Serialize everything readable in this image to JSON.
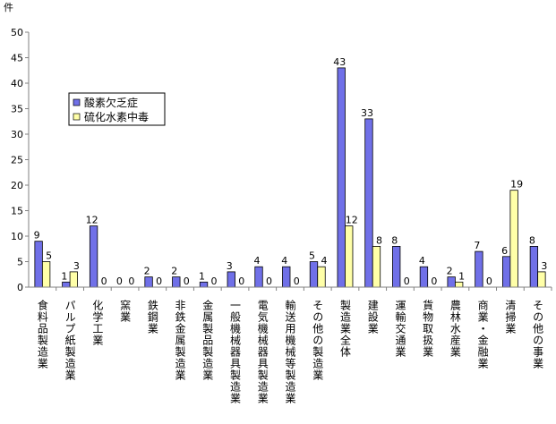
{
  "chart_data": {
    "type": "bar",
    "title": "",
    "xlabel": "",
    "ylabel": "件",
    "ylim": [
      0,
      50
    ],
    "yticks": [
      "0",
      "5",
      "10",
      "15",
      "20",
      "25",
      "30",
      "35",
      "40",
      "45",
      "50"
    ],
    "grid": false,
    "legend_position": "upper-left inside plot",
    "categories": [
      "食料品製造業",
      "パルプ紙製造業",
      "化学工業",
      "窯業",
      "鉄鋼業",
      "非鉄金属製造業",
      "金属製品製造業",
      "一般機械器具製造業",
      "電気機械器具製造業",
      "輸送用機械等製造業",
      "その他の製造業",
      "製造業全体",
      "建設業",
      "運輸交通業",
      "貨物取扱業",
      "農林水産業",
      "商業・金融業",
      "清掃業",
      "その他の事業"
    ],
    "series": [
      {
        "name": "酸素欠乏症",
        "color": "#7070e8",
        "values": [
          9,
          1,
          12,
          0,
          2,
          2,
          1,
          3,
          4,
          4,
          5,
          43,
          33,
          8,
          4,
          2,
          7,
          6,
          8
        ]
      },
      {
        "name": "硫化水素中毒",
        "color": "#ffffa8",
        "values": [
          5,
          3,
          0,
          0,
          0,
          0,
          0,
          0,
          0,
          0,
          4,
          12,
          8,
          0,
          0,
          1,
          0,
          19,
          3
        ]
      }
    ]
  }
}
